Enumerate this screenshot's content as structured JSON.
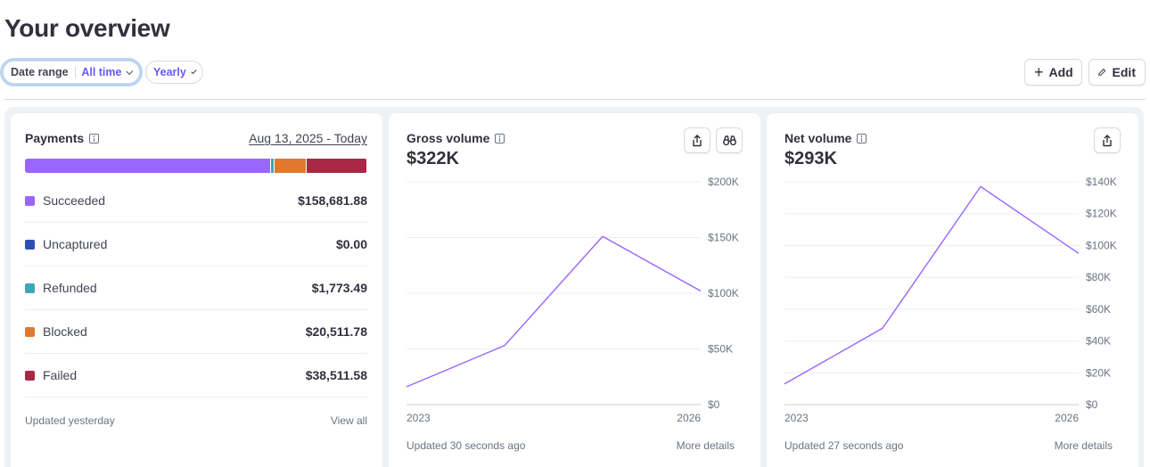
{
  "page": {
    "title": "Your overview"
  },
  "filters": {
    "date_range_label": "Date range",
    "date_range_value": "All time",
    "interval_value": "Yearly"
  },
  "actions": {
    "add_label": "Add",
    "edit_label": "Edit"
  },
  "payments": {
    "title": "Payments",
    "date_range": "Aug 13, 2025 - Today",
    "segments": [
      {
        "name": "Succeeded",
        "value": 158681.88,
        "color": "#9966ff"
      },
      {
        "name": "Uncaptured",
        "value": 0.0,
        "color": "#2c4fb1"
      },
      {
        "name": "Refunded",
        "value": 1773.49,
        "color": "#3fa5b8"
      },
      {
        "name": "Blocked",
        "value": 20511.78,
        "color": "#e0782f"
      },
      {
        "name": "Failed",
        "value": 38511.58,
        "color": "#a92846"
      }
    ],
    "items": [
      {
        "label": "Succeeded",
        "amount": "$158,681.88"
      },
      {
        "label": "Uncaptured",
        "amount": "$0.00"
      },
      {
        "label": "Refunded",
        "amount": "$1,773.49"
      },
      {
        "label": "Blocked",
        "amount": "$20,511.78"
      },
      {
        "label": "Failed",
        "amount": "$38,511.58"
      }
    ],
    "updated": "Updated yesterday",
    "view_all": "View all"
  },
  "gross": {
    "title": "Gross volume",
    "value": "$322K",
    "updated": "Updated 30 seconds ago",
    "more": "More details"
  },
  "net": {
    "title": "Net volume",
    "value": "$293K",
    "updated": "Updated 27 seconds ago",
    "more": "More details"
  },
  "chart_data": [
    {
      "type": "line",
      "title": "Gross volume",
      "x": [
        2023,
        2024,
        2025,
        2026
      ],
      "x_tick_labels": [
        "2023",
        "2026"
      ],
      "ylim": [
        0,
        200000
      ],
      "y_ticks": [
        0,
        50000,
        100000,
        150000,
        200000
      ],
      "y_tick_labels": [
        "$0",
        "$50K",
        "$100K",
        "$150K",
        "$200K"
      ],
      "series": [
        {
          "values": [
            16000,
            53000,
            151000,
            102000
          ]
        }
      ],
      "color": "#9966ff",
      "grid": true
    },
    {
      "type": "line",
      "title": "Net volume",
      "x": [
        2023,
        2024,
        2025,
        2026
      ],
      "x_tick_labels": [
        "2023",
        "2026"
      ],
      "ylim": [
        0,
        140000
      ],
      "y_ticks": [
        0,
        20000,
        40000,
        60000,
        80000,
        100000,
        120000,
        140000
      ],
      "y_tick_labels": [
        "$0",
        "$20K",
        "$40K",
        "$60K",
        "$80K",
        "$100K",
        "$120K",
        "$140K"
      ],
      "series": [
        {
          "values": [
            13000,
            48000,
            137000,
            95000
          ]
        }
      ],
      "color": "#9966ff",
      "grid": true
    }
  ]
}
